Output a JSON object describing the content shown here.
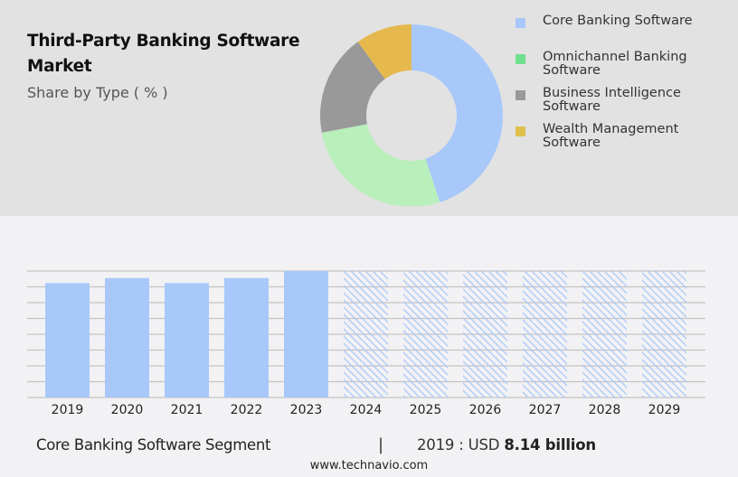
{
  "header": {
    "title_line1": "Third-Party Banking Software",
    "title_line2": "Market",
    "subtitle": "Share by Type ( % )"
  },
  "legend": [
    {
      "label_line1": "Core Banking Software",
      "label_line2": "",
      "color": "#a8c8fa"
    },
    {
      "label_line1": "Omnichannel Banking",
      "label_line2": "Software",
      "color": "#6ee08e"
    },
    {
      "label_line1": "Business Intelligence",
      "label_line2": "Software",
      "color": "#999999"
    },
    {
      "label_line1": "Wealth Management",
      "label_line2": "Software",
      "color": "#e0c04e"
    }
  ],
  "footer": {
    "segment": "Core Banking Software Segment",
    "separator": "|",
    "value_prefix": "2019 : USD ",
    "value_bold": "8.14 billion",
    "url": "www.technavio.com"
  },
  "chart_data": [
    {
      "type": "pie",
      "subtype": "donut",
      "title": "Third-Party Banking Software Market",
      "subtitle": "Share by Type ( % )",
      "categories": [
        "Core Banking Software",
        "Omnichannel Banking Software",
        "Business Intelligence Software",
        "Wealth Management Software"
      ],
      "values": [
        45,
        27,
        18,
        10
      ],
      "colors": [
        "#a8c8fa",
        "#b9efbb",
        "#999999",
        "#e6b94e"
      ],
      "legend_position": "right"
    },
    {
      "type": "bar",
      "title": "Core Banking Software Segment",
      "categories": [
        "2019",
        "2020",
        "2021",
        "2022",
        "2023",
        "2024",
        "2025",
        "2026",
        "2027",
        "2028",
        "2029"
      ],
      "values": [
        8.14,
        8.5,
        8.14,
        8.5,
        9.0,
        null,
        null,
        null,
        null,
        null,
        null
      ],
      "forecast": [
        false,
        false,
        false,
        false,
        false,
        true,
        true,
        true,
        true,
        true,
        true
      ],
      "forecast_placeholder_height": 9.0,
      "annotation": "2019 : USD 8.14 billion",
      "xlabel": "",
      "ylabel": "",
      "ylim": [
        0,
        9.0
      ],
      "grid": true,
      "y_ticks_visible": false,
      "bar_color": "#a8c8fa"
    }
  ]
}
